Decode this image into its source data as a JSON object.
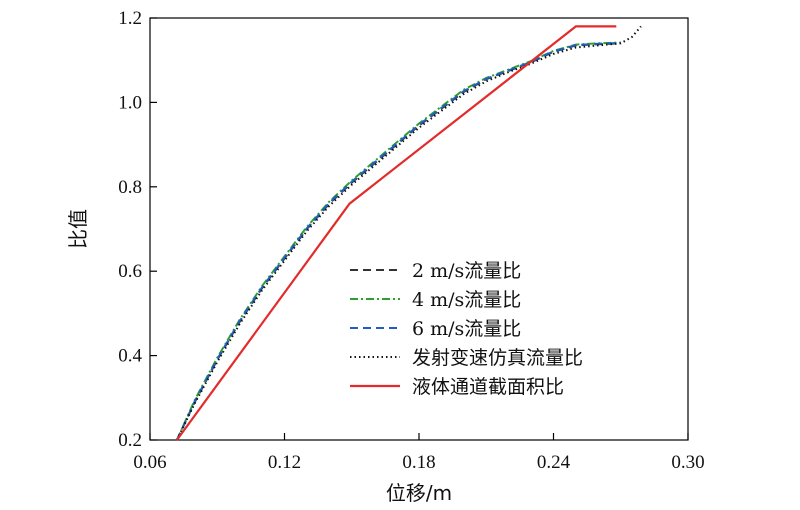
{
  "chart_data": {
    "type": "line",
    "xlabel": "位移/m",
    "ylabel": "比值",
    "xlim": [
      0.06,
      0.3
    ],
    "ylim": [
      0.2,
      1.2
    ],
    "xticks": [
      "0.06",
      "0.12",
      "0.18",
      "0.24",
      "0.30"
    ],
    "yticks": [
      "0.2",
      "0.4",
      "0.6",
      "0.8",
      "1.0",
      "1.2"
    ],
    "legend_position": "center-right",
    "series": [
      {
        "name": "2 m/s流量比",
        "color": "#333333",
        "style": "dashed",
        "x": [
          0.072,
          0.08,
          0.09,
          0.1,
          0.11,
          0.12,
          0.13,
          0.14,
          0.15,
          0.16,
          0.17,
          0.18,
          0.19,
          0.2,
          0.21,
          0.22,
          0.23,
          0.24,
          0.25,
          0.26,
          0.27
        ],
        "y": [
          0.2,
          0.29,
          0.39,
          0.48,
          0.56,
          0.63,
          0.7,
          0.76,
          0.81,
          0.855,
          0.9,
          0.945,
          0.985,
          1.025,
          1.055,
          1.075,
          1.095,
          1.12,
          1.135,
          1.138,
          1.14
        ]
      },
      {
        "name": "4 m/s流量比",
        "color": "#2ca02c",
        "style": "dashdot",
        "x": [
          0.072,
          0.08,
          0.09,
          0.1,
          0.11,
          0.12,
          0.13,
          0.14,
          0.15,
          0.16,
          0.17,
          0.18,
          0.19,
          0.2,
          0.21,
          0.22,
          0.23,
          0.24,
          0.25,
          0.26,
          0.27
        ],
        "y": [
          0.2,
          0.295,
          0.395,
          0.485,
          0.565,
          0.635,
          0.705,
          0.765,
          0.815,
          0.86,
          0.905,
          0.95,
          0.99,
          1.03,
          1.058,
          1.078,
          1.098,
          1.122,
          1.137,
          1.14,
          1.142
        ]
      },
      {
        "name": "6 m/s流量比",
        "color": "#1f5fbf",
        "style": "dashed",
        "x": [
          0.072,
          0.08,
          0.09,
          0.1,
          0.11,
          0.12,
          0.13,
          0.14,
          0.15,
          0.16,
          0.17,
          0.18,
          0.19,
          0.2,
          0.21,
          0.22,
          0.23,
          0.24,
          0.25,
          0.26,
          0.27
        ],
        "y": [
          0.2,
          0.292,
          0.392,
          0.482,
          0.562,
          0.632,
          0.702,
          0.762,
          0.812,
          0.857,
          0.902,
          0.947,
          0.987,
          1.027,
          1.056,
          1.076,
          1.096,
          1.121,
          1.136,
          1.139,
          1.141
        ]
      },
      {
        "name": "发射变速仿真流量比",
        "color": "#111111",
        "style": "dotted",
        "x": [
          0.072,
          0.08,
          0.09,
          0.1,
          0.11,
          0.12,
          0.13,
          0.14,
          0.15,
          0.16,
          0.17,
          0.18,
          0.19,
          0.2,
          0.21,
          0.22,
          0.23,
          0.24,
          0.25,
          0.26,
          0.27,
          0.275,
          0.279
        ],
        "y": [
          0.2,
          0.287,
          0.385,
          0.475,
          0.555,
          0.625,
          0.695,
          0.755,
          0.805,
          0.85,
          0.895,
          0.94,
          0.98,
          1.02,
          1.05,
          1.072,
          1.092,
          1.115,
          1.13,
          1.135,
          1.14,
          1.155,
          1.18
        ]
      },
      {
        "name": "液体通道截面积比",
        "color": "#e32b2b",
        "style": "solid",
        "x": [
          0.072,
          0.149,
          0.25,
          0.268
        ],
        "y": [
          0.2,
          0.76,
          1.18,
          1.18
        ]
      }
    ]
  }
}
